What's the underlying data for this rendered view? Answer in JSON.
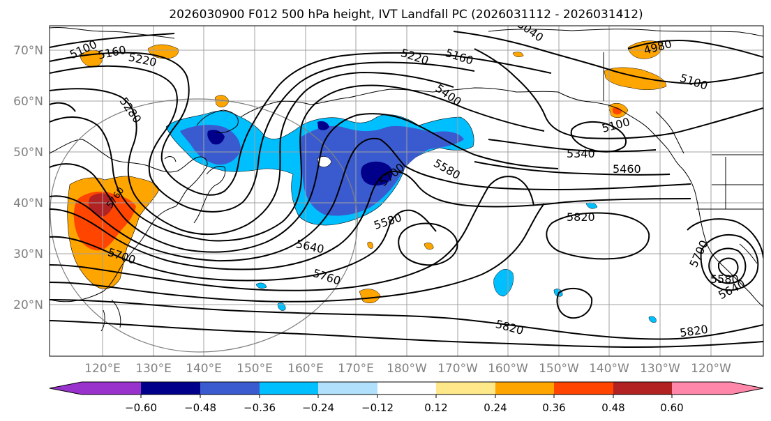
{
  "title": "2026030900 F012 500 hPa height, IVT Landfall PC (2026031112 - 2026031412)",
  "lat_labels": [
    "70°N",
    "60°N",
    "50°N",
    "40°N",
    "30°N",
    "20°N"
  ],
  "lon_labels": [
    "120°E",
    "130°E",
    "140°E",
    "150°E",
    "160°E",
    "170°E",
    "180°W",
    "170°W",
    "160°W",
    "150°W",
    "140°W",
    "130°W",
    "120°W"
  ],
  "contour_labels": [
    "5100",
    "5160",
    "5220",
    "5280",
    "5040",
    "5220",
    "5160",
    "4980",
    "5100",
    "5400",
    "5100",
    "5340",
    "5460",
    "5700",
    "5580",
    "5580",
    "5820",
    "5640",
    "5700",
    "5760",
    "5820",
    "5820",
    "5700",
    "5580",
    "5640",
    "5760"
  ],
  "colorbar": {
    "colors": [
      "#9932cc",
      "#00008b",
      "#3a5bd0",
      "#00bfff",
      "#b0e0fc",
      "#ffffff",
      "#ffe88a",
      "#ffa500",
      "#ff4500",
      "#b22222",
      "#ff88aa"
    ],
    "tick_labels": [
      "−0.60",
      "−0.48",
      "−0.36",
      "−0.24",
      "−0.12",
      "0.12",
      "0.24",
      "0.36",
      "0.48",
      "0.60"
    ]
  }
}
